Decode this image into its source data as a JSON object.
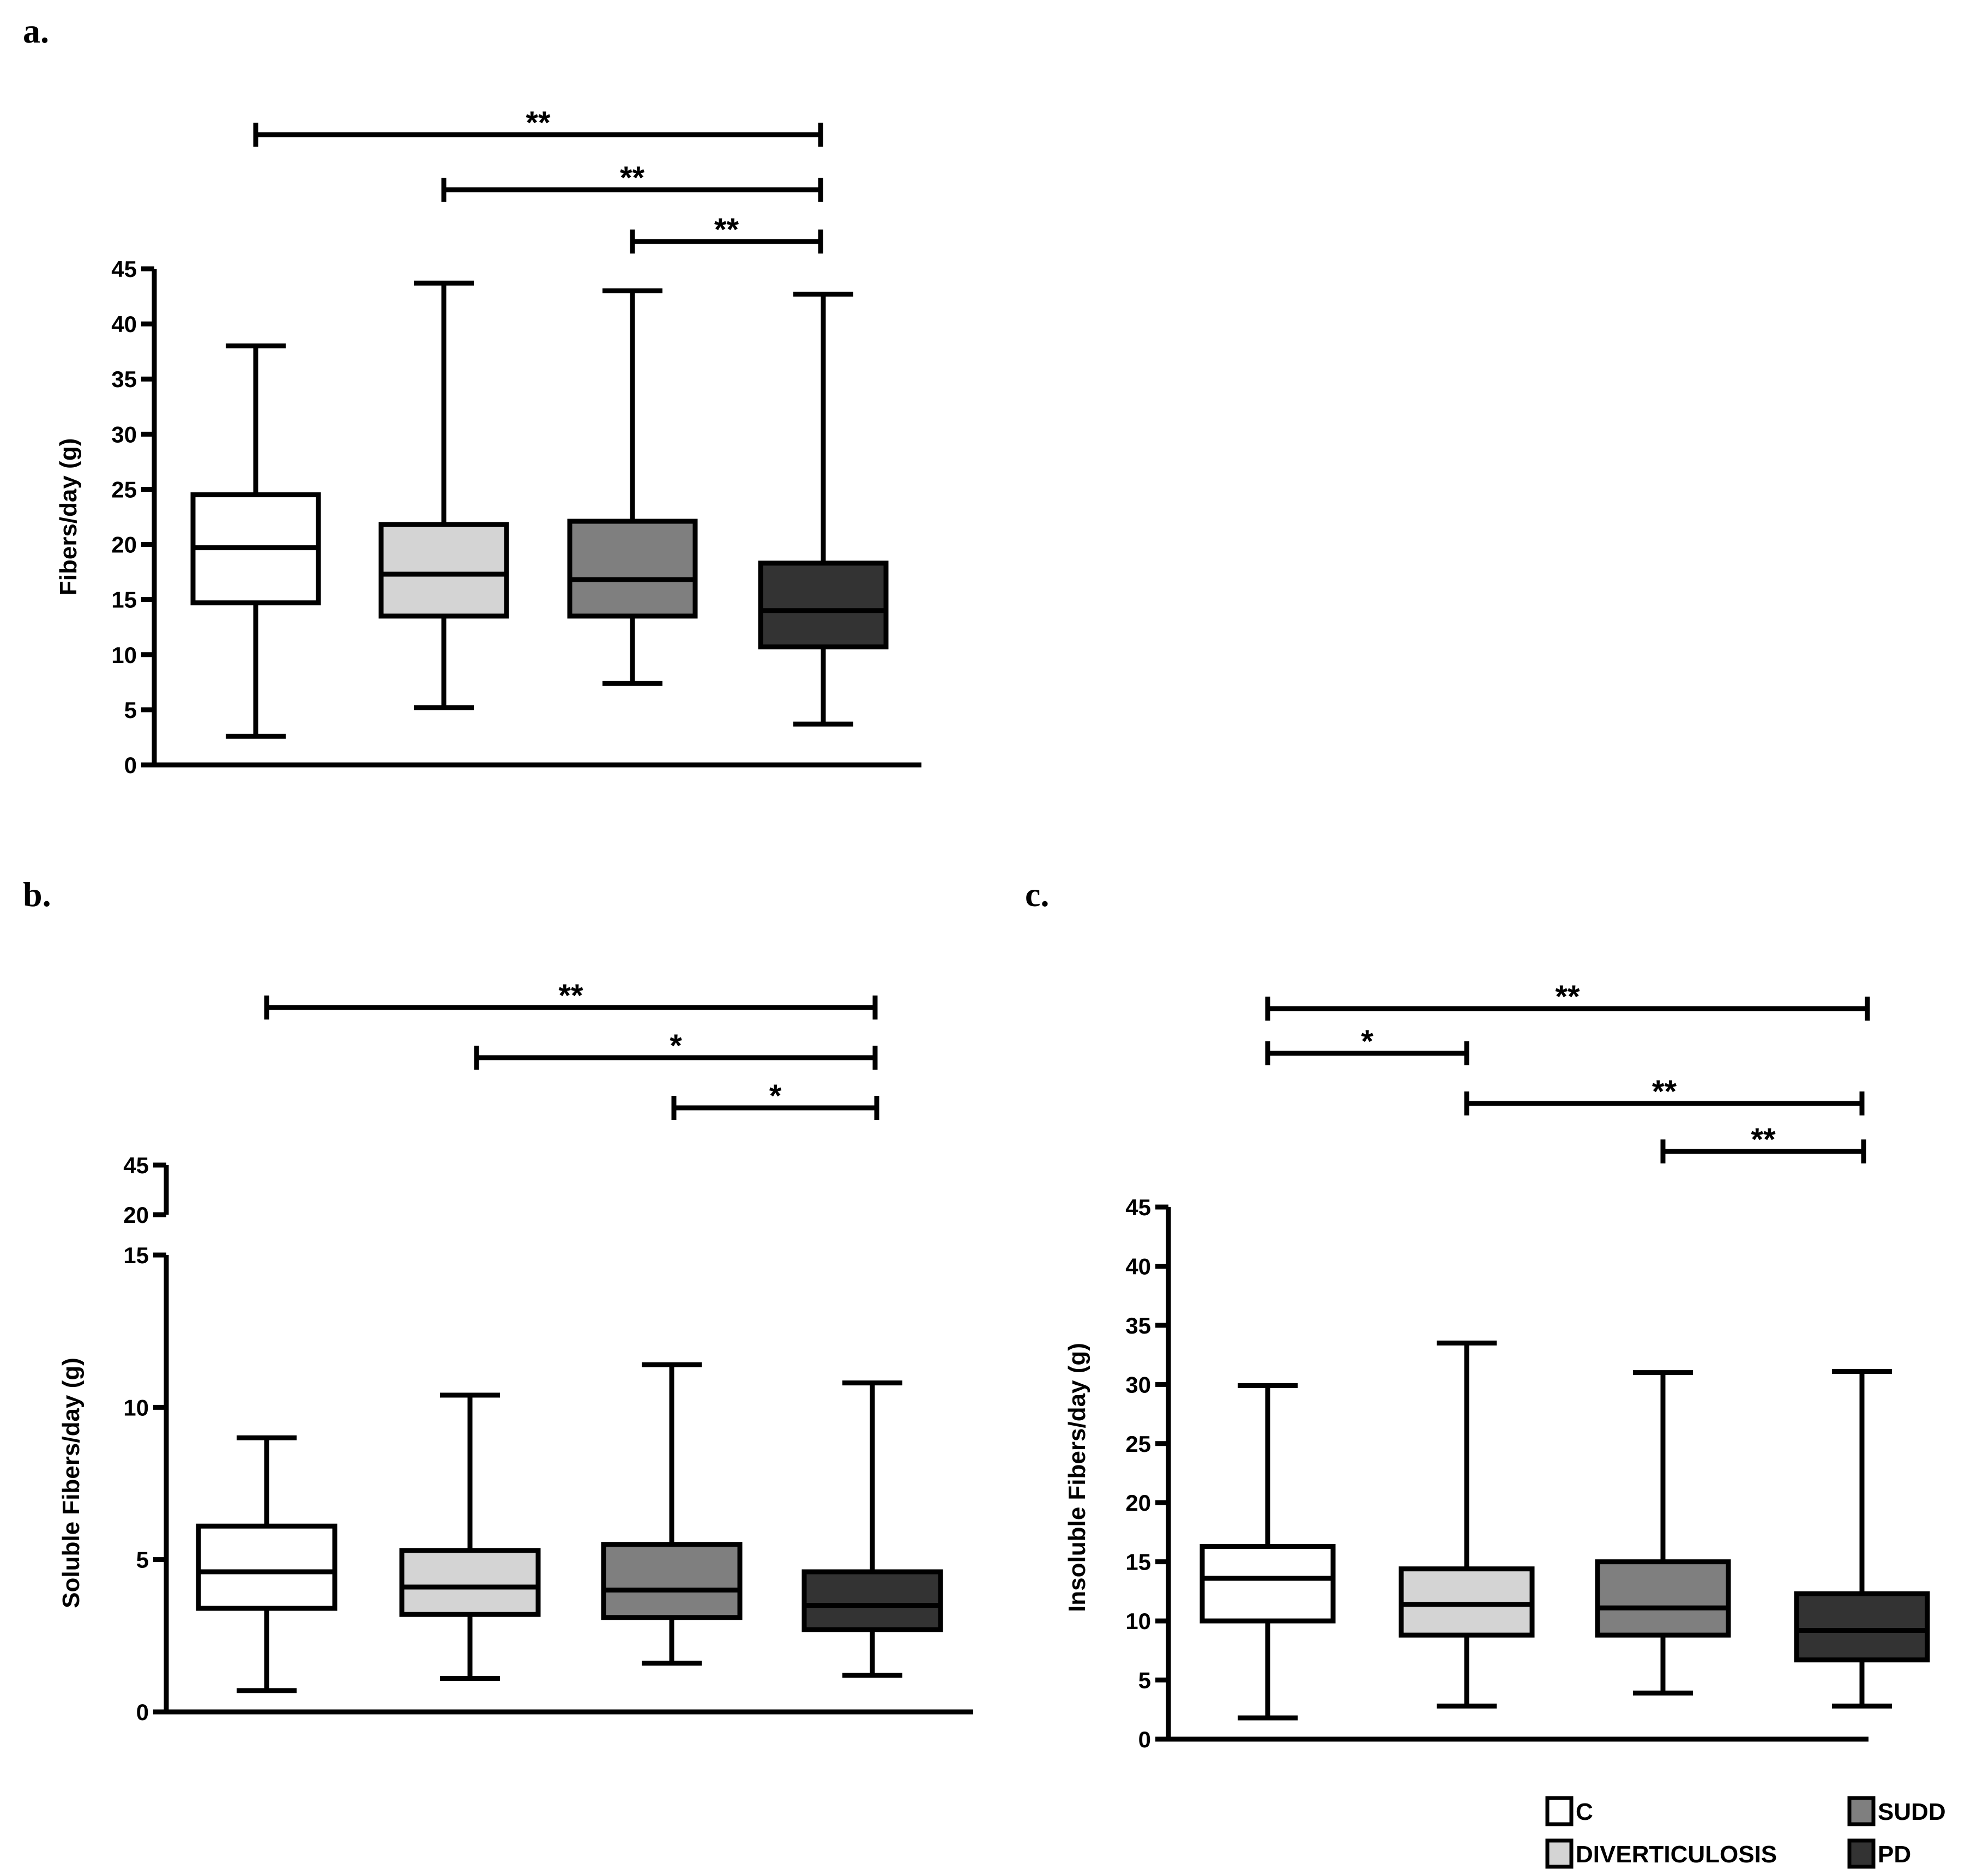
{
  "chart_data": [
    {
      "type": "box",
      "panel_label": "a.",
      "title": "",
      "xlabel": "",
      "ylabel": "Fibers/day (g)",
      "ylim": [
        0,
        45
      ],
      "yticks": [
        0,
        5,
        10,
        15,
        20,
        25,
        30,
        35,
        40,
        45
      ],
      "series": [
        {
          "name": "C",
          "min": 2.6,
          "q1": 14.7,
          "median": 19.7,
          "q3": 24.5,
          "max": 38.0
        },
        {
          "name": "DIVERTICULOSIS",
          "min": 5.2,
          "q1": 13.5,
          "median": 17.3,
          "q3": 21.8,
          "max": 43.7
        },
        {
          "name": "SUDD",
          "min": 7.4,
          "q1": 13.5,
          "median": 16.8,
          "q3": 22.1,
          "max": 43.0
        },
        {
          "name": "PD",
          "min": 3.7,
          "q1": 10.7,
          "median": 14.0,
          "q3": 18.3,
          "max": 42.7
        }
      ],
      "significance": [
        {
          "from": "C",
          "to": "PD",
          "label": "**"
        },
        {
          "from": "DIVERTICULOSIS",
          "to": "PD",
          "label": "**"
        },
        {
          "from": "SUDD",
          "to": "PD",
          "label": "**"
        }
      ]
    },
    {
      "type": "box",
      "panel_label": "b.",
      "title": "",
      "xlabel": "",
      "ylabel": "Soluble Fibers/day  (g)",
      "ylim": [
        0,
        15
      ],
      "yticks": [
        0,
        5,
        10,
        15
      ],
      "broken_axis_ticks": [
        20,
        45
      ],
      "series": [
        {
          "name": "C",
          "min": 0.7,
          "q1": 3.4,
          "median": 4.6,
          "q3": 6.1,
          "max": 9.0
        },
        {
          "name": "DIVERTICULOSIS",
          "min": 1.1,
          "q1": 3.2,
          "median": 4.1,
          "q3": 5.3,
          "max": 10.4
        },
        {
          "name": "SUDD",
          "min": 1.6,
          "q1": 3.1,
          "median": 4.0,
          "q3": 5.5,
          "max": 11.4
        },
        {
          "name": "PD",
          "min": 1.2,
          "q1": 2.7,
          "median": 3.5,
          "q3": 4.6,
          "max": 10.8
        }
      ],
      "significance": [
        {
          "from": "C",
          "to": "PD",
          "label": "**"
        },
        {
          "from": "DIVERTICULOSIS",
          "to": "PD",
          "label": "*"
        },
        {
          "from": "SUDD",
          "to": "PD",
          "label": "*"
        }
      ]
    },
    {
      "type": "box",
      "panel_label": "c.",
      "title": "",
      "xlabel": "",
      "ylabel": "Insoluble Fibers/day (g)",
      "ylim": [
        0,
        45
      ],
      "yticks": [
        0,
        5,
        10,
        15,
        20,
        25,
        30,
        35,
        40,
        45
      ],
      "series": [
        {
          "name": "C",
          "min": 1.8,
          "q1": 10.0,
          "median": 13.6,
          "q3": 16.3,
          "max": 29.9
        },
        {
          "name": "DIVERTICULOSIS",
          "min": 2.8,
          "q1": 8.8,
          "median": 11.4,
          "q3": 14.4,
          "max": 33.5
        },
        {
          "name": "SUDD",
          "min": 3.9,
          "q1": 8.8,
          "median": 11.1,
          "q3": 15.0,
          "max": 31.0
        },
        {
          "name": "PD",
          "min": 2.8,
          "q1": 6.7,
          "median": 9.2,
          "q3": 12.3,
          "max": 31.1
        }
      ],
      "significance": [
        {
          "from": "C",
          "to": "PD",
          "label": "**"
        },
        {
          "from": "C",
          "to": "DIVERTICULOSIS",
          "label": "*"
        },
        {
          "from": "DIVERTICULOSIS",
          "to": "PD",
          "label": "**"
        },
        {
          "from": "SUDD",
          "to": "PD",
          "label": "**"
        }
      ]
    }
  ],
  "legend": [
    {
      "name": "C",
      "color": "#ffffff"
    },
    {
      "name": "DIVERTICULOSIS",
      "color": "#d4d4d4"
    },
    {
      "name": "SUDD",
      "color": "#7f7f7f"
    },
    {
      "name": "PD",
      "color": "#333333"
    }
  ],
  "group_colors": {
    "C": "#ffffff",
    "DIVERTICULOSIS": "#d4d4d4",
    "SUDD": "#7f7f7f",
    "PD": "#333333"
  }
}
